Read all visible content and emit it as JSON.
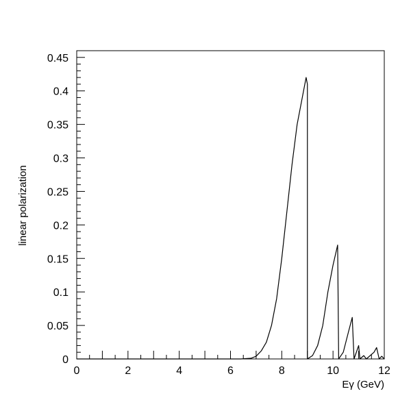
{
  "chart_data": {
    "type": "line",
    "title": "",
    "xlabel": "Eγ (GeV)",
    "ylabel": "linear polarization",
    "xlim": [
      0,
      12
    ],
    "ylim": [
      0,
      0.46
    ],
    "grid": false,
    "x_ticks": [
      0,
      2,
      4,
      6,
      8,
      10,
      12
    ],
    "x_tick_labels": [
      "0",
      "2",
      "4",
      "6",
      "8",
      "10",
      "12"
    ],
    "y_ticks": [
      0,
      0.05,
      0.1,
      0.15,
      0.2,
      0.25,
      0.3,
      0.35,
      0.4,
      0.45
    ],
    "y_tick_labels": [
      "0",
      "0.05",
      "0.1",
      "0.15",
      "0.2",
      "0.25",
      "0.3",
      "0.35",
      "0.4",
      "0.45"
    ],
    "series": [
      {
        "color": "#000000",
        "points": [
          [
            0,
            0
          ],
          [
            6.4,
            0
          ],
          [
            6.8,
            0.001
          ],
          [
            7.0,
            0.004
          ],
          [
            7.2,
            0.012
          ],
          [
            7.4,
            0.025
          ],
          [
            7.6,
            0.05
          ],
          [
            7.8,
            0.09
          ],
          [
            8.0,
            0.15
          ],
          [
            8.2,
            0.22
          ],
          [
            8.4,
            0.29
          ],
          [
            8.6,
            0.35
          ],
          [
            8.8,
            0.39
          ],
          [
            8.95,
            0.42
          ],
          [
            9.0,
            0.41
          ],
          [
            9.0,
            0.0
          ],
          [
            9.2,
            0.005
          ],
          [
            9.4,
            0.02
          ],
          [
            9.6,
            0.05
          ],
          [
            9.8,
            0.1
          ],
          [
            10.0,
            0.14
          ],
          [
            10.18,
            0.17
          ],
          [
            10.22,
            0.0
          ],
          [
            10.4,
            0.01
          ],
          [
            10.6,
            0.04
          ],
          [
            10.75,
            0.062
          ],
          [
            10.82,
            0.0
          ],
          [
            11.0,
            0.02
          ],
          [
            11.05,
            0.0
          ],
          [
            11.2,
            0.005
          ],
          [
            11.3,
            0.0
          ],
          [
            11.6,
            0.01
          ],
          [
            11.7,
            0.017
          ],
          [
            11.8,
            0.0
          ],
          [
            11.9,
            0.004
          ],
          [
            12.0,
            0.0
          ]
        ]
      }
    ]
  }
}
